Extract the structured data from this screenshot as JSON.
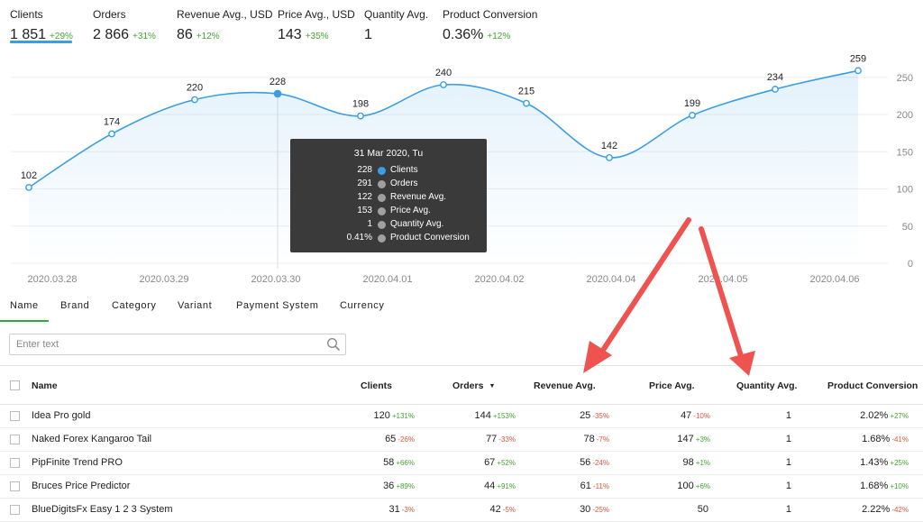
{
  "kpis": [
    {
      "label": "Clients",
      "value": "1 851",
      "change": "+29%"
    },
    {
      "label": "Orders",
      "value": "2 866",
      "change": "+31%"
    },
    {
      "label": "Revenue Avg., USD",
      "value": "86",
      "change": "+12%"
    },
    {
      "label": "Price Avg., USD",
      "value": "143",
      "change": "+35%"
    },
    {
      "label": "Quantity Avg.",
      "value": "1",
      "change": ""
    },
    {
      "label": "Product Conversion",
      "value": "0.36%",
      "change": "+12%"
    }
  ],
  "chart_data": {
    "type": "area",
    "x_labels": [
      "2020.03.28",
      "2020.03.29",
      "2020.03.30",
      "2020.04.01",
      "2020.04.02",
      "2020.04.04",
      "2020.04.05",
      "2020.04.06"
    ],
    "points": [
      102,
      174,
      220,
      228,
      198,
      240,
      215,
      142,
      199,
      234,
      259
    ],
    "y_ticks": [
      0,
      50,
      100,
      150,
      200,
      250
    ],
    "ylim": [
      0,
      250
    ],
    "series_color": "#3a9ee2",
    "highlighted_index": 3
  },
  "tooltip": {
    "date": "31 Mar 2020, Tu",
    "rows": [
      {
        "value": "228",
        "name": "Clients",
        "color": "blue"
      },
      {
        "value": "291",
        "name": "Orders",
        "color": "grey"
      },
      {
        "value": "122",
        "name": "Revenue Avg.",
        "color": "grey"
      },
      {
        "value": "153",
        "name": "Price Avg.",
        "color": "grey"
      },
      {
        "value": "1",
        "name": "Quantity Avg.",
        "color": "grey"
      },
      {
        "value": "0.41%",
        "name": "Product Conversion",
        "color": "grey"
      }
    ]
  },
  "tabs": [
    "Name",
    "Brand",
    "Category",
    "Variant",
    "Payment System",
    "Currency"
  ],
  "search": {
    "placeholder": "Enter text",
    "value": ""
  },
  "table": {
    "headers": {
      "name": "Name",
      "clients": "Clients",
      "orders": "Orders",
      "orders_sort": "▼",
      "revenue": "Revenue Avg.",
      "price": "Price Avg.",
      "quantity": "Quantity Avg.",
      "conversion": "Product Conversion"
    },
    "rows": [
      {
        "name": "Idea Pro gold",
        "clients": "120",
        "clients_d": "+131%",
        "orders": "144",
        "orders_d": "+153%",
        "revenue": "25",
        "revenue_d": "-35%",
        "price": "47",
        "price_d": "-10%",
        "quantity": "1",
        "conversion": "2.02%",
        "conversion_d": "+27%"
      },
      {
        "name": "Naked Forex Kangaroo Tail",
        "clients": "65",
        "clients_d": "-26%",
        "orders": "77",
        "orders_d": "-33%",
        "revenue": "78",
        "revenue_d": "-7%",
        "price": "147",
        "price_d": "+3%",
        "quantity": "1",
        "conversion": "1.68%",
        "conversion_d": "-41%"
      },
      {
        "name": "PipFinite Trend PRO",
        "clients": "58",
        "clients_d": "+66%",
        "orders": "67",
        "orders_d": "+52%",
        "revenue": "56",
        "revenue_d": "-24%",
        "price": "98",
        "price_d": "+1%",
        "quantity": "1",
        "conversion": "1.43%",
        "conversion_d": "+25%"
      },
      {
        "name": "Bruces Price Predictor",
        "clients": "36",
        "clients_d": "+89%",
        "orders": "44",
        "orders_d": "+91%",
        "revenue": "61",
        "revenue_d": "-11%",
        "price": "100",
        "price_d": "+6%",
        "quantity": "1",
        "conversion": "1.68%",
        "conversion_d": "+10%"
      },
      {
        "name": "BlueDigitsFx Easy 1 2 3 System",
        "clients": "31",
        "clients_d": "-3%",
        "orders": "42",
        "orders_d": "-5%",
        "revenue": "30",
        "revenue_d": "-25%",
        "price": "50",
        "price_d": "",
        "quantity": "1",
        "conversion": "2.22%",
        "conversion_d": "-42%"
      }
    ]
  }
}
